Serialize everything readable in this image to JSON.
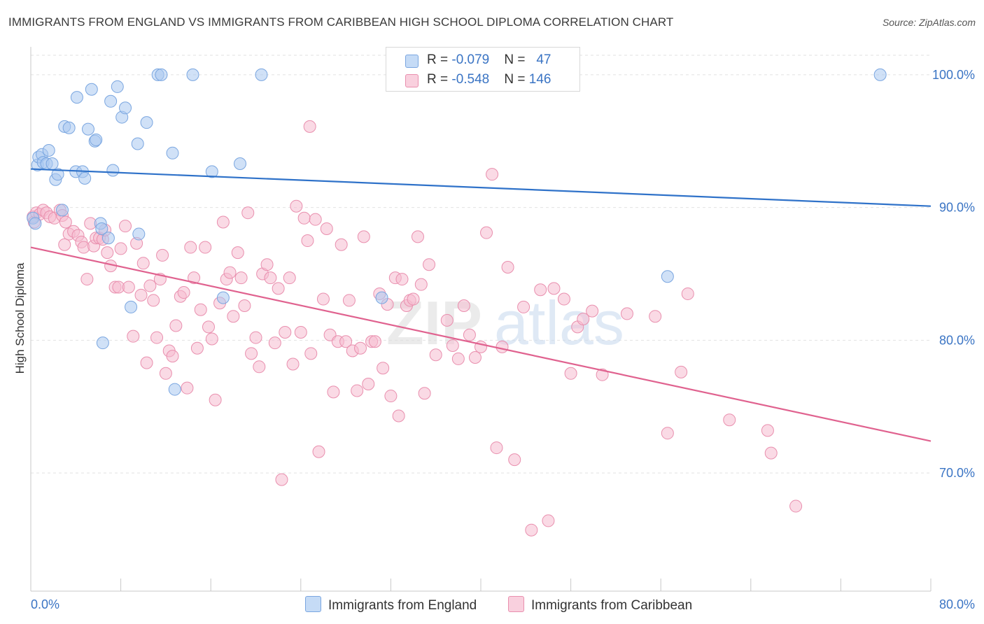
{
  "header": {
    "title": "IMMIGRANTS FROM ENGLAND VS IMMIGRANTS FROM CARIBBEAN HIGH SCHOOL DIPLOMA CORRELATION CHART",
    "source": "Source: ZipAtlas.com"
  },
  "watermark": {
    "zip": "ZIP",
    "atlas": "atlas"
  },
  "legend_top": {
    "england": {
      "r_label": "R = ",
      "r_value": "-0.079",
      "n_label": "N = ",
      "n_value": "47"
    },
    "caribbean": {
      "r_label": "R = ",
      "r_value": "-0.548",
      "n_label": "N = ",
      "n_value": "146"
    }
  },
  "colors": {
    "england_fill": "#a9c8f0",
    "england_stroke": "#7aa6e0",
    "england_line": "#2f72c9",
    "caribbean_fill": "#f6bcd0",
    "caribbean_stroke": "#e98fae",
    "caribbean_line": "#e0628f",
    "tick_label": "#3a74c4",
    "grid": "#e2e2e2"
  },
  "chart_data": {
    "type": "scatter",
    "title": "IMMIGRANTS FROM ENGLAND VS IMMIGRANTS FROM CARIBBEAN HIGH SCHOOL DIPLOMA CORRELATION CHART",
    "xlabel": "",
    "ylabel": "High School Diploma",
    "xlim": [
      0,
      80
    ],
    "ylim": [
      61.1,
      102.1
    ],
    "x_tick_labels": [
      "0.0%",
      "80.0%"
    ],
    "y_ticks": [
      70,
      80,
      90,
      100
    ],
    "y_tick_labels": [
      "70.0%",
      "80.0%",
      "90.0%",
      "100.0%"
    ],
    "grid": true,
    "legend_position": "bottom",
    "series": [
      {
        "name": "Immigrants from England",
        "r": -0.079,
        "n": 47,
        "trend": [
          [
            0,
            92.9
          ],
          [
            80,
            90.1
          ]
        ],
        "points": [
          [
            0.2,
            89.2
          ],
          [
            0.4,
            88.8
          ],
          [
            0.6,
            93.2
          ],
          [
            0.7,
            93.8
          ],
          [
            1.0,
            94.0
          ],
          [
            1.1,
            93.4
          ],
          [
            1.4,
            93.3
          ],
          [
            1.6,
            94.3
          ],
          [
            1.9,
            93.3
          ],
          [
            2.2,
            92.1
          ],
          [
            2.4,
            92.5
          ],
          [
            2.8,
            89.8
          ],
          [
            3.0,
            96.1
          ],
          [
            3.4,
            96.0
          ],
          [
            4.0,
            92.7
          ],
          [
            4.1,
            98.3
          ],
          [
            4.6,
            92.7
          ],
          [
            4.8,
            92.2
          ],
          [
            5.1,
            95.9
          ],
          [
            5.4,
            98.9
          ],
          [
            5.7,
            95.0
          ],
          [
            5.8,
            95.1
          ],
          [
            6.2,
            88.8
          ],
          [
            6.3,
            88.4
          ],
          [
            6.4,
            79.8
          ],
          [
            6.9,
            87.7
          ],
          [
            7.1,
            98.0
          ],
          [
            7.3,
            92.8
          ],
          [
            7.7,
            99.1
          ],
          [
            8.1,
            96.8
          ],
          [
            8.4,
            97.5
          ],
          [
            8.9,
            82.5
          ],
          [
            9.5,
            94.8
          ],
          [
            9.6,
            88.0
          ],
          [
            10.3,
            96.4
          ],
          [
            11.3,
            100.0
          ],
          [
            11.6,
            100.0
          ],
          [
            12.6,
            94.1
          ],
          [
            12.8,
            76.3
          ],
          [
            14.4,
            100.0
          ],
          [
            16.1,
            92.7
          ],
          [
            17.1,
            83.2
          ],
          [
            18.6,
            93.3
          ],
          [
            20.5,
            100.0
          ],
          [
            31.2,
            83.2
          ],
          [
            56.6,
            84.8
          ],
          [
            75.5,
            100.0
          ]
        ]
      },
      {
        "name": "Immigrants from Caribbean",
        "r": -0.548,
        "n": 146,
        "trend": [
          [
            0,
            87.0
          ],
          [
            80,
            72.4
          ]
        ],
        "points": [
          [
            0.2,
            89.3
          ],
          [
            0.3,
            88.9
          ],
          [
            0.5,
            89.6
          ],
          [
            0.8,
            89.5
          ],
          [
            1.1,
            89.8
          ],
          [
            1.4,
            89.6
          ],
          [
            1.7,
            89.3
          ],
          [
            2.1,
            89.2
          ],
          [
            2.6,
            89.8
          ],
          [
            2.8,
            89.4
          ],
          [
            3.1,
            88.9
          ],
          [
            3.0,
            87.2
          ],
          [
            3.4,
            88.0
          ],
          [
            3.8,
            88.2
          ],
          [
            4.2,
            87.9
          ],
          [
            4.5,
            87.4
          ],
          [
            4.7,
            87.0
          ],
          [
            5.0,
            84.6
          ],
          [
            5.3,
            88.8
          ],
          [
            5.6,
            87.1
          ],
          [
            5.8,
            87.7
          ],
          [
            6.1,
            87.7
          ],
          [
            6.4,
            87.6
          ],
          [
            6.6,
            88.3
          ],
          [
            6.8,
            86.6
          ],
          [
            7.1,
            85.6
          ],
          [
            7.5,
            84.0
          ],
          [
            7.8,
            84.0
          ],
          [
            8.0,
            86.9
          ],
          [
            8.4,
            88.6
          ],
          [
            8.7,
            84.0
          ],
          [
            9.1,
            80.3
          ],
          [
            9.4,
            87.3
          ],
          [
            9.8,
            83.4
          ],
          [
            10.0,
            85.8
          ],
          [
            10.3,
            78.3
          ],
          [
            10.6,
            84.1
          ],
          [
            10.9,
            83.0
          ],
          [
            11.2,
            80.2
          ],
          [
            11.5,
            84.6
          ],
          [
            11.7,
            86.4
          ],
          [
            12.0,
            77.5
          ],
          [
            12.3,
            79.2
          ],
          [
            12.6,
            78.8
          ],
          [
            12.9,
            81.1
          ],
          [
            13.3,
            83.3
          ],
          [
            13.6,
            83.6
          ],
          [
            13.9,
            76.4
          ],
          [
            14.2,
            87.0
          ],
          [
            14.5,
            84.7
          ],
          [
            14.8,
            79.4
          ],
          [
            15.1,
            82.3
          ],
          [
            15.5,
            87.0
          ],
          [
            15.8,
            81.0
          ],
          [
            16.1,
            80.1
          ],
          [
            16.4,
            75.5
          ],
          [
            16.8,
            82.8
          ],
          [
            17.1,
            88.9
          ],
          [
            17.4,
            84.6
          ],
          [
            17.7,
            85.1
          ],
          [
            18.0,
            81.8
          ],
          [
            18.4,
            86.6
          ],
          [
            18.7,
            84.7
          ],
          [
            19.0,
            82.6
          ],
          [
            19.3,
            89.6
          ],
          [
            19.6,
            79.0
          ],
          [
            20.0,
            80.2
          ],
          [
            20.3,
            78.0
          ],
          [
            20.6,
            85.0
          ],
          [
            21.0,
            85.7
          ],
          [
            21.3,
            84.7
          ],
          [
            21.7,
            79.8
          ],
          [
            22.0,
            83.9
          ],
          [
            22.3,
            69.5
          ],
          [
            22.6,
            80.6
          ],
          [
            23.0,
            84.7
          ],
          [
            23.3,
            78.2
          ],
          [
            23.6,
            90.1
          ],
          [
            24.0,
            80.6
          ],
          [
            24.3,
            89.2
          ],
          [
            24.6,
            87.5
          ],
          [
            24.9,
            79.0
          ],
          [
            25.3,
            89.1
          ],
          [
            25.6,
            71.6
          ],
          [
            26.0,
            83.1
          ],
          [
            26.3,
            88.4
          ],
          [
            26.6,
            80.4
          ],
          [
            26.9,
            76.1
          ],
          [
            27.3,
            79.9
          ],
          [
            27.6,
            87.2
          ],
          [
            28.0,
            79.9
          ],
          [
            28.3,
            83.0
          ],
          [
            28.6,
            79.2
          ],
          [
            29.0,
            76.2
          ],
          [
            29.3,
            79.4
          ],
          [
            29.6,
            87.8
          ],
          [
            30.0,
            76.7
          ],
          [
            30.3,
            79.9
          ],
          [
            30.6,
            79.9
          ],
          [
            31.0,
            83.5
          ],
          [
            31.3,
            77.9
          ],
          [
            31.7,
            82.7
          ],
          [
            32.0,
            75.8
          ],
          [
            32.4,
            84.7
          ],
          [
            32.7,
            74.3
          ],
          [
            33.0,
            84.6
          ],
          [
            33.4,
            82.6
          ],
          [
            33.7,
            83.0
          ],
          [
            34.0,
            83.1
          ],
          [
            34.4,
            87.8
          ],
          [
            34.7,
            84.2
          ],
          [
            35.0,
            76.0
          ],
          [
            35.4,
            85.7
          ],
          [
            36.0,
            78.9
          ],
          [
            37.0,
            81.5
          ],
          [
            37.5,
            79.6
          ],
          [
            38.0,
            78.6
          ],
          [
            38.5,
            82.6
          ],
          [
            39.0,
            80.4
          ],
          [
            39.5,
            78.7
          ],
          [
            40.0,
            79.5
          ],
          [
            40.5,
            88.1
          ],
          [
            41.0,
            92.5
          ],
          [
            41.4,
            71.9
          ],
          [
            41.9,
            79.5
          ],
          [
            42.4,
            85.5
          ],
          [
            43.0,
            71.0
          ],
          [
            43.8,
            82.5
          ],
          [
            44.5,
            65.7
          ],
          [
            45.3,
            83.8
          ],
          [
            46.0,
            66.4
          ],
          [
            46.5,
            83.9
          ],
          [
            47.4,
            83.1
          ],
          [
            48.0,
            77.5
          ],
          [
            48.6,
            81.0
          ],
          [
            49.1,
            81.6
          ],
          [
            49.9,
            82.2
          ],
          [
            50.8,
            77.4
          ],
          [
            53.0,
            82.0
          ],
          [
            55.5,
            81.8
          ],
          [
            56.6,
            73.0
          ],
          [
            57.8,
            77.6
          ],
          [
            58.4,
            83.5
          ],
          [
            62.1,
            74.0
          ],
          [
            65.5,
            73.2
          ],
          [
            65.8,
            71.5
          ],
          [
            68.0,
            67.5
          ],
          [
            24.8,
            96.1
          ]
        ]
      }
    ]
  }
}
